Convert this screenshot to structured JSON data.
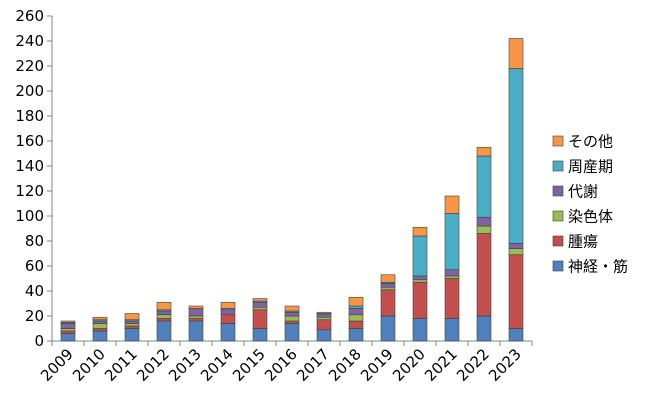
{
  "chart_data": {
    "type": "bar",
    "stacked": true,
    "categories": [
      "2009",
      "2010",
      "2011",
      "2012",
      "2013",
      "2014",
      "2015",
      "2016",
      "2017",
      "2018",
      "2019",
      "2020",
      "2021",
      "2022",
      "2023"
    ],
    "ylim": [
      0,
      260
    ],
    "yticks": [
      0,
      20,
      40,
      60,
      80,
      100,
      120,
      140,
      160,
      180,
      200,
      220,
      240,
      260
    ],
    "grid": false,
    "legend_position": "right",
    "series": [
      {
        "name": "神経・筋",
        "color": "#4f81bd",
        "values": [
          6,
          8,
          10,
          16,
          16,
          14,
          10,
          14,
          9,
          10,
          20,
          18,
          18,
          20,
          10
        ]
      },
      {
        "name": "腫瘍",
        "color": "#c0504d",
        "values": [
          2,
          2,
          2,
          2,
          2,
          7,
          15,
          2,
          8,
          6,
          21,
          29,
          32,
          66,
          59
        ]
      },
      {
        "name": "染色体",
        "color": "#9bbb59",
        "values": [
          2,
          4,
          2,
          3,
          2,
          0,
          2,
          4,
          2,
          5,
          2,
          2,
          2,
          6,
          5
        ]
      },
      {
        "name": "代謝",
        "color": "#8064a2",
        "values": [
          4,
          2,
          2,
          3,
          6,
          4,
          4,
          3,
          2,
          5,
          3,
          3,
          5,
          7,
          4
        ]
      },
      {
        "name": "周産期",
        "color": "#4bacc6",
        "values": [
          1,
          1,
          1,
          1,
          0,
          1,
          1,
          1,
          1,
          2,
          1,
          32,
          45,
          49,
          140
        ]
      },
      {
        "name": "その他",
        "color": "#f79646",
        "values": [
          1,
          2,
          5,
          6,
          2,
          5,
          2,
          4,
          1,
          7,
          6,
          7,
          14,
          7,
          24
        ]
      }
    ]
  }
}
